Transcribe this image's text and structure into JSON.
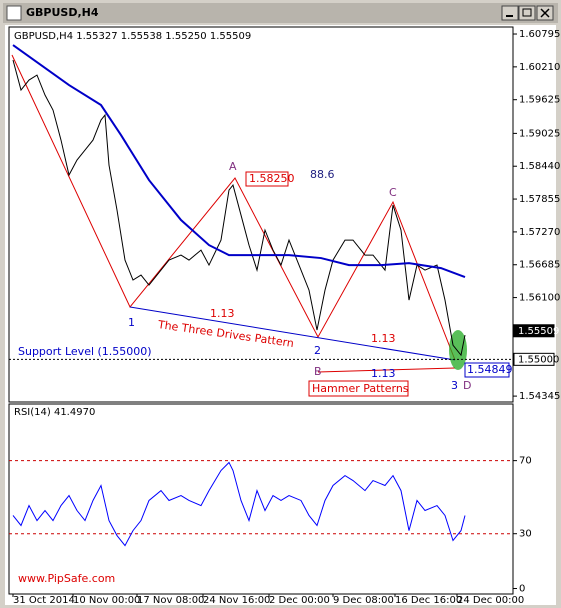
{
  "window_title": "GBPUSD,H4",
  "chart_data": [
    {
      "type": "line",
      "header": "GBPUSD,H4  1.55327 1.55538 1.55250 1.55509",
      "xlim": [
        0,
        252
      ],
      "ylim": [
        1.5424,
        1.6092
      ],
      "yticks": [
        1.60795,
        {
          "value": 1.6021,
          "label": "1.60210"
        },
        1.59625,
        1.59025,
        {
          "value": 1.5844,
          "label": "1.58440"
        },
        1.57855,
        {
          "value": 1.5727,
          "label": "1.57270"
        },
        1.56685,
        {
          "value": 1.561,
          "label": "1.56100"
        },
        1.54345
      ],
      "price_marks": [
        1.55509,
        {
          "value": 1.55,
          "label": "1.55000"
        }
      ],
      "series": [
        {
          "color": "#000000",
          "x": [
            2,
            6,
            10,
            14,
            18,
            22,
            26,
            30,
            34,
            38,
            42,
            46,
            48,
            50,
            54,
            58,
            62,
            66,
            70,
            76,
            80,
            86,
            90,
            96,
            100,
            106,
            110,
            112,
            116,
            120,
            124,
            128,
            132,
            136,
            140,
            146,
            150,
            154,
            158,
            162,
            168,
            172,
            178,
            182,
            188,
            192,
            196,
            200,
            204,
            208,
            214,
            218,
            222,
            226,
            228
          ],
          "values": [
            1.60332,
            1.59797,
            1.59975,
            1.60064,
            1.59708,
            1.59441,
            1.58906,
            1.58283,
            1.5855,
            1.58728,
            1.58906,
            1.59263,
            1.59352,
            1.58461,
            1.57659,
            1.56768,
            1.56412,
            1.56501,
            1.56322,
            1.5659,
            1.56768,
            1.56857,
            1.56768,
            1.56946,
            1.56679,
            1.57124,
            1.58015,
            1.58104,
            1.5757,
            1.57035,
            1.5659,
            1.57302,
            1.56946,
            1.56679,
            1.57124,
            1.5659,
            1.56233,
            1.55521,
            1.56233,
            1.56768,
            1.57124,
            1.57124,
            1.56857,
            1.56857,
            1.5659,
            1.57748,
            1.57302,
            1.56055,
            1.56679,
            1.5659,
            1.56679,
            1.56055,
            1.55253,
            1.55075,
            1.55432
          ]
        },
        {
          "color": "#0000c8",
          "x": [
            2,
            16,
            30,
            46,
            56,
            70,
            86,
            100,
            110,
            126,
            140,
            156,
            170,
            186,
            200,
            216,
            228
          ],
          "values": [
            1.60599,
            1.60243,
            1.59886,
            1.5953,
            1.58995,
            1.58193,
            1.57481,
            1.57035,
            1.56857,
            1.56857,
            1.56857,
            1.56804,
            1.56679,
            1.56679,
            1.56714,
            1.56625,
            1.56465
          ]
        }
      ],
      "annotations": [
        "A",
        "1.58250",
        "88.6",
        "C",
        "1",
        "1.13",
        "The Three Drives Pattern",
        "2",
        "1.13",
        "Support Level (1.55000)",
        "B",
        "1.13",
        "Hammer Patterns",
        "3",
        "D",
        "1.54849"
      ],
      "watermark": "www.PipSafe.com"
    },
    {
      "type": "line",
      "title": "RSI(14) 41.4970",
      "xlim": [
        0,
        252
      ],
      "ylim": [
        -3,
        101
      ],
      "yticks": [
        0,
        30,
        70
      ],
      "levels": [
        30,
        70
      ],
      "xticks": [
        {
          "value": 2,
          "label": "31 Oct 2014"
        },
        {
          "value": 32,
          "label": "10 Nov 00:00"
        },
        {
          "value": 64,
          "label": "17 Nov 08:00"
        },
        {
          "value": 97,
          "label": "24 Nov 16:00"
        },
        {
          "value": 130,
          "label": "2 Dec 00:00"
        },
        {
          "value": 162,
          "label": "9 Dec 08:00"
        },
        {
          "value": 193,
          "label": "16 Dec 16:00"
        },
        {
          "value": 224,
          "label": "24 Dec 00:00"
        }
      ],
      "series": [
        {
          "color": "#0000ff",
          "x": [
            2,
            6,
            10,
            14,
            18,
            22,
            26,
            30,
            34,
            38,
            42,
            46,
            50,
            54,
            58,
            62,
            66,
            70,
            76,
            80,
            86,
            90,
            96,
            100,
            106,
            110,
            112,
            116,
            120,
            124,
            128,
            132,
            136,
            140,
            146,
            150,
            154,
            158,
            162,
            168,
            172,
            178,
            182,
            188,
            192,
            196,
            200,
            204,
            208,
            214,
            218,
            222,
            226,
            228
          ],
          "values": [
            40.0,
            34.5,
            45.4,
            37.2,
            42.7,
            37.2,
            45.4,
            50.9,
            42.7,
            37.2,
            48.2,
            56.4,
            37.2,
            29.0,
            23.5,
            31.7,
            37.2,
            48.2,
            53.6,
            48.2,
            50.9,
            48.2,
            45.4,
            53.6,
            64.6,
            69.0,
            64.6,
            48.2,
            37.2,
            53.6,
            42.7,
            50.9,
            48.2,
            50.9,
            48.2,
            40.0,
            34.5,
            48.2,
            56.4,
            61.8,
            59.1,
            53.6,
            59.1,
            56.4,
            61.8,
            53.6,
            31.7,
            48.2,
            42.7,
            45.4,
            40.0,
            26.3,
            31.7,
            40.0
          ]
        }
      ]
    }
  ]
}
